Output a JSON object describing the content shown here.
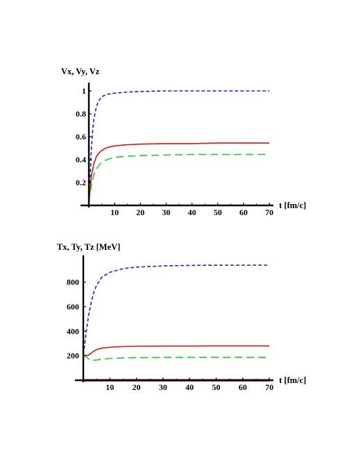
{
  "chart_data": [
    {
      "type": "line",
      "ylabel": "Vx,  Vy, Vz",
      "xlabel": "t [fm/c]",
      "xlim": [
        0,
        70
      ],
      "ylim": [
        0,
        1.0
      ],
      "xticks": [
        "10",
        "20",
        "30",
        "40",
        "50",
        "60",
        "70"
      ],
      "yticks": [
        "0.2",
        "0.4",
        "0.6",
        "0.8",
        "1"
      ],
      "grid": false,
      "series": [
        {
          "color": "#1a1aff",
          "dash": "short",
          "x": [
            0,
            0.5,
            1,
            1.5,
            2,
            3,
            4,
            5,
            7,
            10,
            15,
            20,
            30,
            40,
            50,
            60,
            70
          ],
          "y": [
            0.0,
            0.25,
            0.5,
            0.66,
            0.76,
            0.87,
            0.92,
            0.95,
            0.97,
            0.98,
            0.99,
            0.995,
            1.0,
            1.0,
            1.0,
            1.0,
            1.0
          ]
        },
        {
          "color": "#e01010",
          "dash": "solid",
          "x": [
            0,
            0.5,
            1,
            2,
            3,
            4,
            5,
            7,
            10,
            15,
            20,
            30,
            40,
            50,
            60,
            70
          ],
          "y": [
            0.0,
            0.15,
            0.26,
            0.37,
            0.43,
            0.46,
            0.48,
            0.505,
            0.52,
            0.53,
            0.535,
            0.54,
            0.54,
            0.545,
            0.545,
            0.545
          ]
        },
        {
          "color": "#22cc22",
          "dash": "long",
          "x": [
            0,
            0.5,
            1,
            2,
            3,
            4,
            5,
            7,
            10,
            15,
            20,
            30,
            40,
            50,
            60,
            70
          ],
          "y": [
            0.02,
            0.1,
            0.18,
            0.27,
            0.32,
            0.355,
            0.375,
            0.4,
            0.42,
            0.43,
            0.435,
            0.44,
            0.445,
            0.445,
            0.445,
            0.445
          ]
        }
      ]
    },
    {
      "type": "line",
      "ylabel": "Tx,  Ty,  Tz [MeV]",
      "xlabel": "t [fm/c]",
      "xlim": [
        0,
        70
      ],
      "ylim": [
        0,
        950
      ],
      "xticks": [
        "10",
        "20",
        "30",
        "40",
        "50",
        "60",
        "70"
      ],
      "yticks": [
        "200",
        "400",
        "600",
        "800"
      ],
      "grid": false,
      "series": [
        {
          "color": "#1a1aff",
          "dash": "short",
          "x": [
            0,
            0.5,
            1,
            2,
            3,
            4,
            5,
            7,
            10,
            15,
            20,
            30,
            40,
            50,
            60,
            70
          ],
          "y": [
            210,
            290,
            380,
            530,
            640,
            720,
            775,
            840,
            880,
            910,
            922,
            932,
            936,
            938,
            938,
            938
          ]
        },
        {
          "color": "#e01010",
          "dash": "solid",
          "x": [
            0,
            1,
            2,
            3,
            4,
            5,
            7,
            10,
            15,
            20,
            30,
            40,
            50,
            60,
            70
          ],
          "y": [
            210,
            200,
            205,
            222,
            238,
            250,
            262,
            270,
            275,
            277,
            279,
            279,
            280,
            280,
            280
          ]
        },
        {
          "color": "#22cc22",
          "dash": "long",
          "x": [
            0,
            1,
            2,
            3,
            4,
            5,
            7,
            10,
            15,
            20,
            30,
            40,
            50,
            60,
            70
          ],
          "y": [
            210,
            195,
            175,
            163,
            163,
            165,
            172,
            178,
            182,
            184,
            186,
            187,
            187,
            187,
            187
          ]
        },
        {
          "color": "#cc1111",
          "dash": "solid",
          "x": [
            0,
            70
          ],
          "y": [
            0,
            0
          ]
        }
      ]
    }
  ]
}
